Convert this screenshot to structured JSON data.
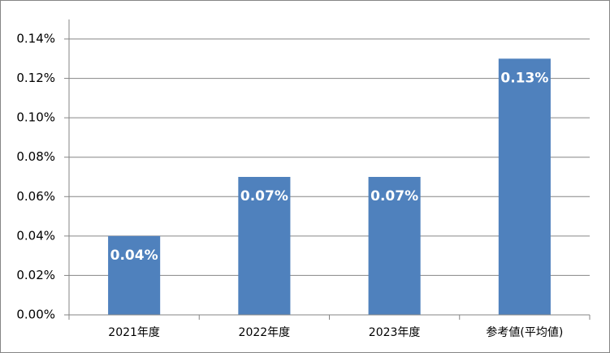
{
  "chart_data": {
    "type": "bar",
    "categories": [
      "2021年度",
      "2022年度",
      "2023年度",
      "参考値(平均値)"
    ],
    "values": [
      0.04,
      0.07,
      0.07,
      0.13
    ],
    "value_labels": [
      "0.04%",
      "0.07%",
      "0.07%",
      "0.13%"
    ],
    "color": "#4f81bd",
    "ylim": [
      0,
      0.14
    ],
    "yticks": [
      {
        "value": 0,
        "label": "0.00%"
      },
      {
        "value": 0.02,
        "label": "0.02%"
      },
      {
        "value": 0.04,
        "label": "0.04%"
      },
      {
        "value": 0.06,
        "label": "0.06%"
      },
      {
        "value": 0.08,
        "label": "0.08%"
      },
      {
        "value": 0.1,
        "label": "0.10%"
      },
      {
        "value": 0.12,
        "label": "0.12%"
      },
      {
        "value": 0.14,
        "label": "0.14%"
      }
    ],
    "grid": true
  }
}
